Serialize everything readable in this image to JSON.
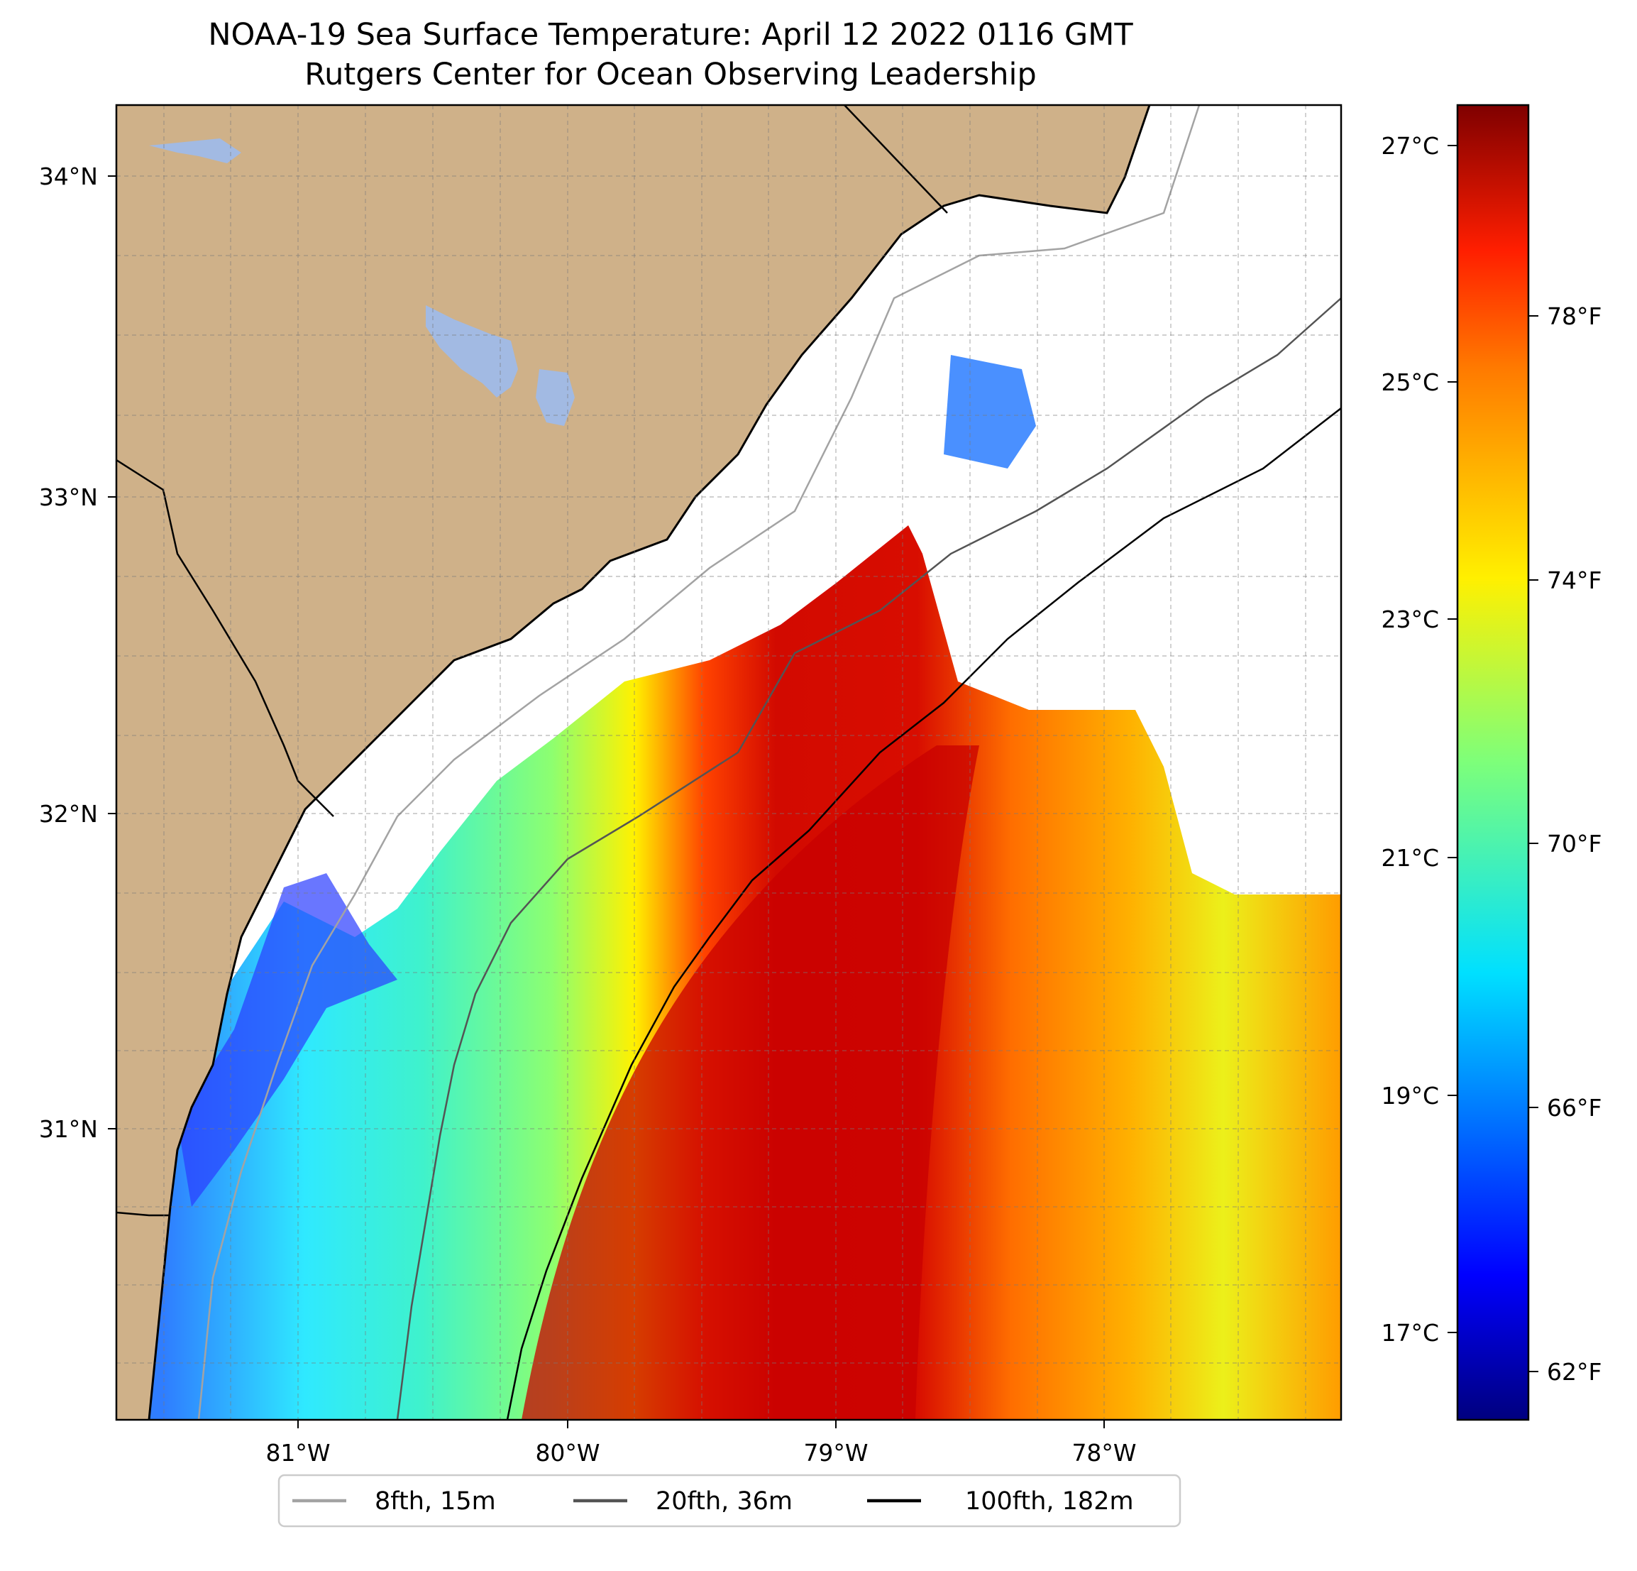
{
  "title": "NOAA-19 Sea Surface Temperature: April 12 2022 0116 GMT",
  "subtitle": "Rutgers Center for Ocean Observing Leadership",
  "map": {
    "lon_range": [
      -81.67,
      -77.08
    ],
    "lat_range": [
      30.08,
      34.22
    ],
    "lon_ticks": [
      "81°W",
      "80°W",
      "79°W",
      "78°W"
    ],
    "lat_ticks": [
      "34°N",
      "33°N",
      "32°N",
      "31°N"
    ],
    "gridlines": true,
    "colors": {
      "land": "#cfb189",
      "lakes": "#a2bae3",
      "cloud_mask": "#ffffff",
      "coastline": "#000000"
    }
  },
  "colorbar": {
    "colormap": "jet",
    "celsius_ticks": [
      "27°C",
      "25°C",
      "23°C",
      "21°C",
      "19°C",
      "17°C"
    ],
    "fahrenheit_ticks": [
      "78°F",
      "74°F",
      "70°F",
      "66°F",
      "62°F"
    ]
  },
  "legend": {
    "placement": "bottom-center",
    "items": [
      {
        "label": "8fth, 15m",
        "color": "#a3a3a3"
      },
      {
        "label": "20fth, 36m",
        "color": "#545454"
      },
      {
        "label": "100fth, 182m",
        "color": "#000000"
      }
    ]
  }
}
